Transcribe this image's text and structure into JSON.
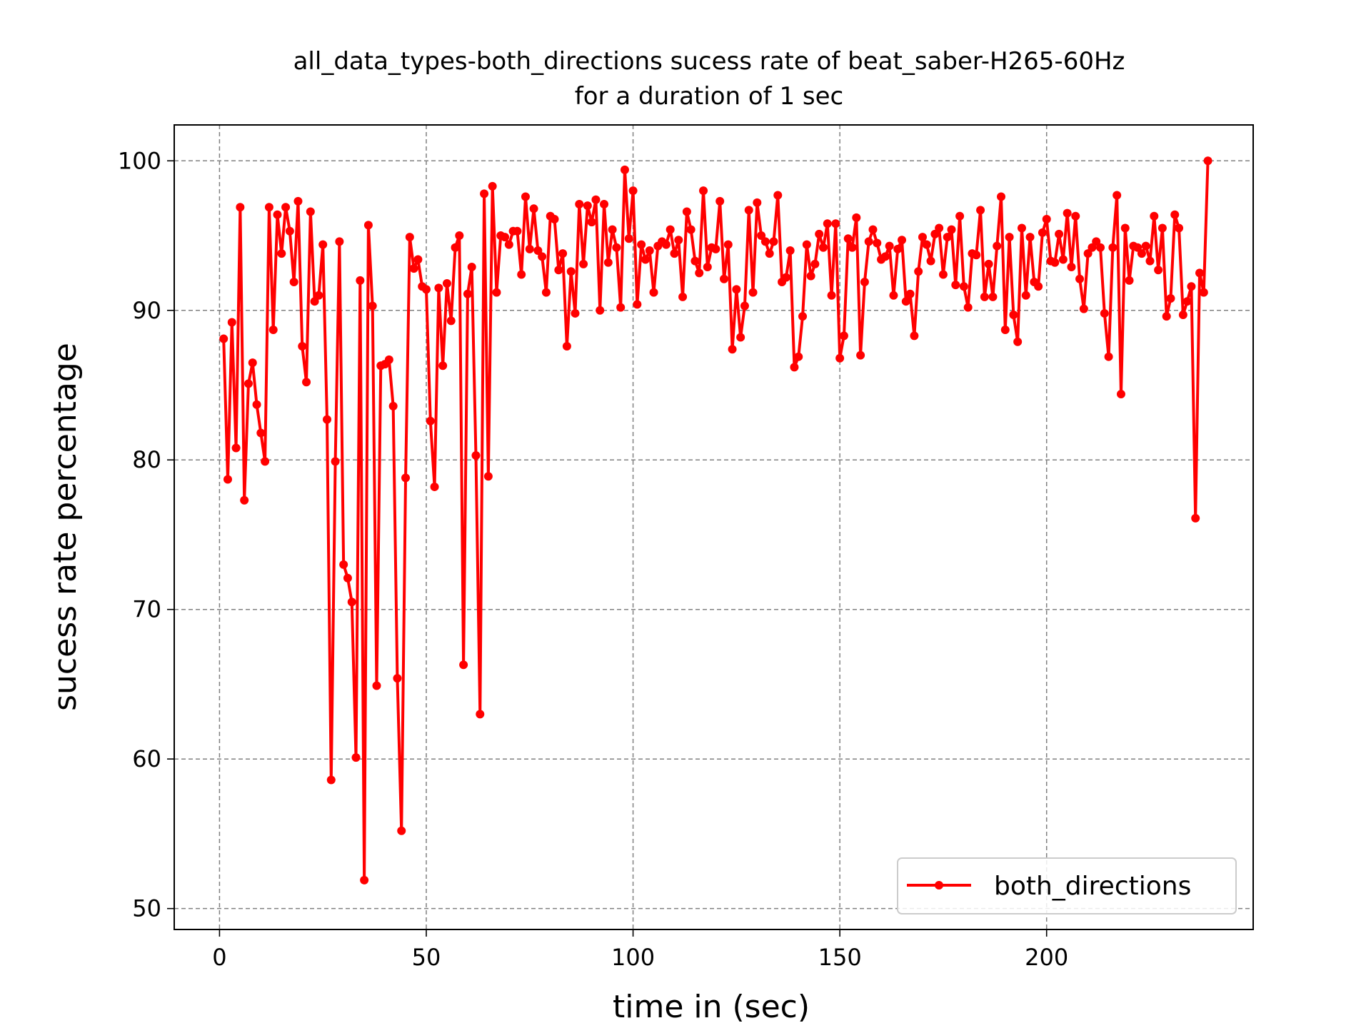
{
  "chart_data": {
    "type": "line",
    "title": "all_data_types-both_directions sucess rate of beat_saber-H265-60Hz",
    "subtitle": "for a duration of 1 sec",
    "xlabel": "time in (sec)",
    "ylabel": "sucess rate percentage",
    "xlim": [
      -10.95,
      249.95
    ],
    "ylim": [
      48.6,
      102.4
    ],
    "x_ticks": [
      "0",
      "50",
      "100",
      "150",
      "200"
    ],
    "y_ticks": [
      "50",
      "60",
      "70",
      "80",
      "90",
      "100"
    ],
    "grid": true,
    "legend_position": "lower-right",
    "series": [
      {
        "name": "both_directions",
        "color": "#ff0000",
        "marker": "circle",
        "x_start": 1,
        "x_step": 1,
        "values": [
          88.1,
          78.7,
          89.2,
          80.8,
          96.9,
          77.3,
          85.1,
          86.5,
          83.7,
          81.8,
          79.9,
          96.9,
          88.7,
          96.4,
          93.8,
          96.9,
          95.3,
          91.9,
          97.3,
          87.6,
          85.2,
          96.6,
          90.6,
          91.0,
          94.4,
          82.7,
          58.6,
          79.9,
          94.6,
          73.0,
          72.1,
          70.5,
          60.1,
          92.0,
          51.9,
          95.7,
          90.3,
          64.9,
          86.3,
          86.4,
          86.7,
          83.6,
          65.4,
          55.2,
          78.8,
          94.9,
          92.8,
          93.4,
          91.6,
          91.4,
          82.6,
          78.2,
          91.5,
          86.3,
          91.8,
          89.3,
          94.2,
          95.0,
          66.3,
          91.1,
          92.9,
          80.3,
          63.0,
          97.8,
          78.9,
          98.3,
          91.2,
          95.0,
          94.9,
          94.4,
          95.3,
          95.3,
          92.4,
          97.6,
          94.1,
          96.8,
          94.0,
          93.6,
          91.2,
          96.3,
          96.1,
          92.7,
          93.8,
          87.6,
          92.6,
          89.8,
          97.1,
          93.1,
          97.0,
          95.9,
          97.4,
          90.0,
          97.1,
          93.2,
          95.4,
          94.2,
          90.2,
          99.4,
          94.8,
          98.0,
          90.4,
          94.4,
          93.4,
          94.0,
          91.2,
          94.3,
          94.6,
          94.4,
          95.4,
          93.8,
          94.7,
          90.9,
          96.6,
          95.4,
          93.3,
          92.5,
          98.0,
          92.9,
          94.2,
          94.1,
          97.3,
          92.1,
          94.4,
          87.4,
          91.4,
          88.2,
          90.3,
          96.7,
          91.2,
          97.2,
          95.0,
          94.6,
          93.8,
          94.6,
          97.7,
          91.9,
          92.2,
          94.0,
          86.2,
          86.9,
          89.6,
          94.4,
          92.3,
          93.1,
          95.1,
          94.2,
          95.8,
          91.0,
          95.8,
          86.8,
          88.3,
          94.8,
          94.2,
          96.2,
          87.0,
          91.9,
          94.6,
          95.4,
          94.5,
          93.4,
          93.6,
          94.3,
          91.0,
          94.1,
          94.7,
          90.6,
          91.1,
          88.3,
          92.6,
          94.9,
          94.4,
          93.3,
          95.1,
          95.5,
          92.4,
          94.9,
          95.4,
          91.7,
          96.3,
          91.6,
          90.2,
          93.8,
          93.7,
          96.7,
          90.9,
          93.1,
          90.9,
          94.3,
          97.6,
          88.7,
          94.9,
          89.7,
          87.9,
          95.5,
          91.0,
          94.9,
          91.9,
          91.6,
          95.2,
          96.1,
          93.3,
          93.2,
          95.1,
          93.4,
          96.5,
          92.9,
          96.3,
          92.1,
          90.1,
          93.8,
          94.2,
          94.6,
          94.2,
          89.8,
          86.9,
          94.2,
          97.7,
          84.4,
          95.5,
          92.0,
          94.3,
          94.2,
          93.8,
          94.3,
          93.3,
          96.3,
          92.7,
          95.5,
          89.6,
          90.8,
          96.4,
          95.5,
          89.7,
          90.6,
          91.6,
          76.1,
          92.5,
          91.2,
          100.0
        ]
      }
    ]
  }
}
